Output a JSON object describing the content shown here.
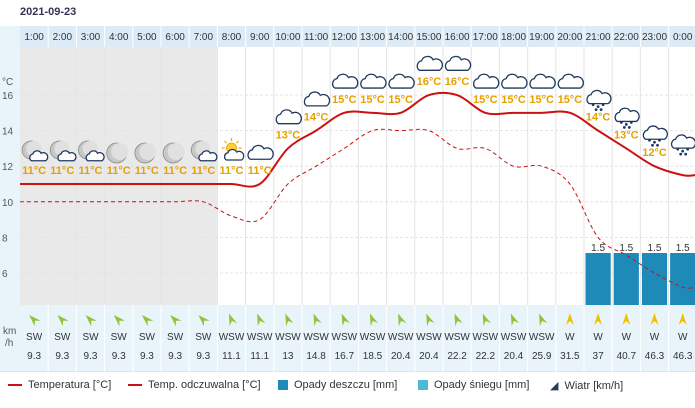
{
  "date": "2021-09-23",
  "hours": [
    "1:00",
    "2:00",
    "3:00",
    "4:00",
    "5:00",
    "6:00",
    "7:00",
    "8:00",
    "9:00",
    "10:00",
    "11:00",
    "12:00",
    "13:00",
    "14:00",
    "15:00",
    "16:00",
    "17:00",
    "18:00",
    "19:00",
    "20:00",
    "21:00",
    "22:00",
    "23:00",
    "0:00"
  ],
  "units": {
    "temp": "°C",
    "wind_line1": "km",
    "wind_line2": "/h"
  },
  "chart_data": {
    "type": "line",
    "y_ticks": [
      6,
      8,
      10,
      12,
      14,
      16
    ],
    "ylim": [
      4.2,
      18.7
    ],
    "temperature": [
      11,
      11,
      11,
      11,
      11,
      11,
      11,
      11,
      11,
      13,
      14,
      15,
      15,
      15,
      16,
      16,
      15,
      15,
      15,
      15,
      14,
      13,
      12,
      11.5
    ],
    "temp_labels": [
      "11°C",
      "11°C",
      "11°C",
      "11°C",
      "11°C",
      "11°C",
      "11°C",
      "11°C",
      "11°C",
      "13°C",
      "14°C",
      "15°C",
      "15°C",
      "15°C",
      "16°C",
      "16°C",
      "15°C",
      "15°C",
      "15°C",
      "15°C",
      "14°C",
      "13°C",
      "12°C",
      ""
    ],
    "feels_like": [
      10,
      10,
      10,
      10,
      10,
      10,
      10,
      9.2,
      9,
      11,
      12,
      13,
      14,
      14,
      14,
      13,
      13,
      12,
      12,
      11,
      8,
      7,
      6,
      5.2
    ],
    "precip": [
      null,
      null,
      null,
      null,
      null,
      null,
      null,
      null,
      null,
      null,
      null,
      null,
      null,
      null,
      null,
      null,
      null,
      null,
      null,
      null,
      1.5,
      1.5,
      1.5,
      1.5
    ],
    "precip_labels": [
      "",
      "",
      "",
      "",
      "",
      "",
      "",
      "",
      "",
      "",
      "",
      "",
      "",
      "",
      "",
      "",
      "",
      "",
      "",
      "",
      "1.5",
      "1.5",
      "1.5",
      "1.5"
    ],
    "precip_color": "#1e8ab8",
    "night_shade_until_hour_index": 7
  },
  "icons": [
    "moon-cloud-icon",
    "moon-cloud-icon",
    "moon-cloud-icon",
    "moon-icon",
    "moon-icon",
    "moon-icon",
    "moon-cloud-icon",
    "sun-cloud-icon",
    "cloud-icon",
    "cloud-icon",
    "cloud-icon",
    "cloud-icon",
    "cloud-icon",
    "cloud-icon",
    "cloud-icon",
    "cloud-icon",
    "cloud-icon",
    "cloud-icon",
    "cloud-icon",
    "cloud-icon",
    "rain-cloud-icon",
    "rain-cloud-icon",
    "rain-cloud-icon",
    "rain-cloud-icon"
  ],
  "wind": {
    "directions": [
      "SW",
      "SW",
      "SW",
      "SW",
      "SW",
      "SW",
      "SW",
      "WSW",
      "WSW",
      "WSW",
      "WSW",
      "WSW",
      "WSW",
      "WSW",
      "WSW",
      "WSW",
      "WSW",
      "WSW",
      "WSW",
      "W",
      "W",
      "W",
      "W",
      "W"
    ],
    "speeds": [
      "9.3",
      "9.3",
      "9.3",
      "9.3",
      "9.3",
      "9.3",
      "9.3",
      "11.1",
      "11.1",
      "13",
      "14.8",
      "16.7",
      "18.5",
      "20.4",
      "20.4",
      "22.2",
      "22.2",
      "20.4",
      "25.9",
      "31.5",
      "37",
      "40.7",
      "46.3",
      "46.3"
    ],
    "arrow_rotation_deg": [
      45,
      45,
      45,
      45,
      45,
      45,
      45,
      68,
      68,
      68,
      68,
      68,
      68,
      68,
      68,
      68,
      68,
      68,
      68,
      90,
      90,
      90,
      90,
      90
    ]
  },
  "colors": {
    "temp_line": "#cc1111",
    "feels_line": "#cc1111",
    "temp_label": "#e8a000",
    "arrow_green": "#8fc43a",
    "arrow_yellow": "#f0c000",
    "hour_band": "#dcebf5",
    "panel_bg": "#e8f4fa",
    "night_bg": "#e9e9e9"
  },
  "legend": {
    "temperature": "Temperatura [°C]",
    "feels_like": "Temp. odczuwalna [°C]",
    "rain": "Opady deszczu [mm]",
    "snow": "Opady śniegu [mm]",
    "wind": "Wiatr [km/h]"
  }
}
